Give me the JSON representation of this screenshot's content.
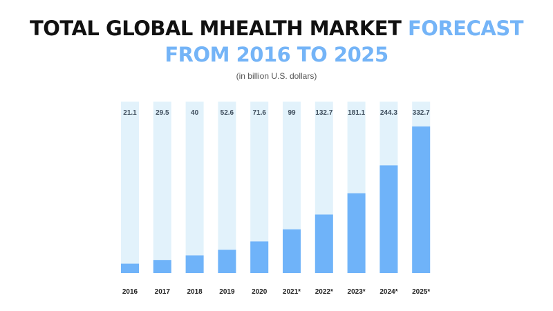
{
  "header": {
    "title_part1": "TOTAL GLOBAL MHEALTH MARKET ",
    "title_part2": "FORECAST",
    "title_line2": "FROM 2016 TO 2025",
    "subtitle": "(in billion U.S. dollars)"
  },
  "colors": {
    "bar": "#6fb3f9",
    "track": "#e2f2fb",
    "title_dark": "#111111",
    "title_accent": "#74b4f7"
  },
  "chart_data": {
    "type": "bar",
    "title": "TOTAL GLOBAL MHEALTH MARKET FORECAST FROM 2016 TO 2025",
    "subtitle": "(in billion U.S. dollars)",
    "categories": [
      "2016",
      "2017",
      "2018",
      "2019",
      "2020",
      "2021*",
      "2022*",
      "2023*",
      "2024*",
      "2025*"
    ],
    "values": [
      21.1,
      29.5,
      40,
      52.6,
      71.6,
      99,
      132.7,
      181.1,
      244.3,
      332.7
    ],
    "value_labels": [
      "21.1",
      "29.5",
      "40",
      "52.6",
      "71.6",
      "99",
      "132.7",
      "181.1",
      "244.3",
      "332.7"
    ],
    "ylim": [
      0,
      350
    ],
    "grid": false,
    "legend": "none"
  }
}
